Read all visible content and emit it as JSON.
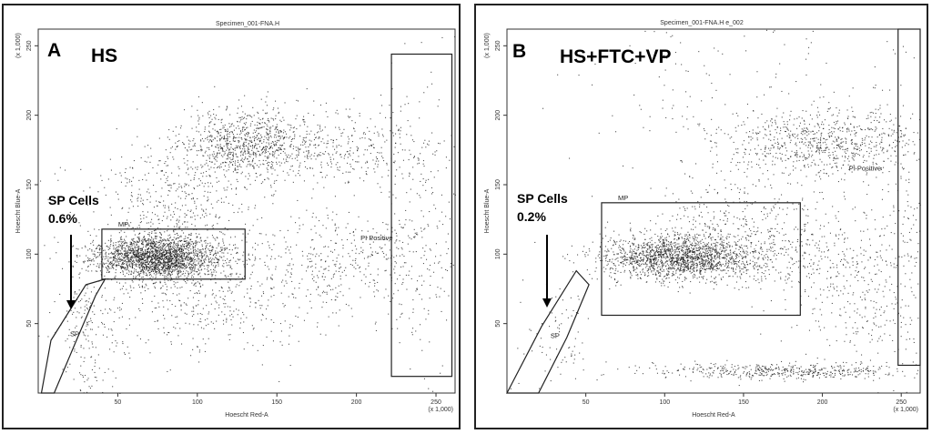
{
  "chart_data": [
    {
      "type": "scatter",
      "panel": "A",
      "header": "Specimen_001-FNA.H",
      "condition": "HS",
      "xlabel": "Hoescht Red-A",
      "ylabel": "Hoescht Blue-A",
      "x_scale_note": "(x 1,000)",
      "y_scale_note": "(x 1,000)",
      "xlim": [
        0,
        262
      ],
      "ylim": [
        0,
        262
      ],
      "xticks": [
        50,
        100,
        150,
        200,
        250
      ],
      "yticks": [
        50,
        100,
        150,
        200,
        250
      ],
      "annotation": {
        "line1": "SP Cells",
        "line2": "0.6%"
      },
      "gates": [
        {
          "name": "SP",
          "label": "SP",
          "shape": "polygon",
          "points": [
            [
              2,
              0
            ],
            [
              8,
              38
            ],
            [
              30,
              78
            ],
            [
              42,
              82
            ],
            [
              36,
              70
            ],
            [
              24,
              38
            ],
            [
              10,
              0
            ]
          ]
        },
        {
          "name": "MP",
          "label": "MP",
          "shape": "rect",
          "x": [
            40,
            130
          ],
          "y": [
            82,
            118
          ]
        },
        {
          "name": "PI Positive",
          "label": "PI Positive",
          "shape": "rect",
          "x": [
            222,
            260
          ],
          "y": [
            12,
            244
          ]
        }
      ],
      "populations": [
        {
          "cx": 75,
          "cy": 98,
          "sx": 20,
          "sy": 8,
          "weight": 0.46
        },
        {
          "cx": 130,
          "cy": 180,
          "sx": 20,
          "sy": 12,
          "weight": 0.16
        },
        {
          "cx": 185,
          "cy": 175,
          "sx": 30,
          "sy": 15,
          "weight": 0.07
        },
        {
          "cx": 85,
          "cy": 140,
          "sx": 25,
          "sy": 20,
          "weight": 0.08
        },
        {
          "cx": 110,
          "cy": 70,
          "sx": 40,
          "sy": 22,
          "weight": 0.09
        },
        {
          "cx": 190,
          "cy": 95,
          "sx": 35,
          "sy": 18,
          "weight": 0.07
        },
        {
          "cx": 30,
          "cy": 45,
          "sx": 10,
          "sy": 22,
          "weight": 0.03
        },
        {
          "cx": 240,
          "cy": 120,
          "sx": 15,
          "sy": 60,
          "weight": 0.04
        }
      ],
      "sp_percent": 0.6
    },
    {
      "type": "scatter",
      "panel": "B",
      "header": "Specimen_001-FNA.H        e_002",
      "condition": "HS+FTC+VP",
      "xlabel": "Hoescht Red-A",
      "ylabel": "Hoescht Blue-A",
      "x_scale_note": "(x 1,000)",
      "y_scale_note": "(x 1,000)",
      "xlim": [
        0,
        262
      ],
      "ylim": [
        0,
        262
      ],
      "xticks": [
        50,
        100,
        150,
        200,
        250
      ],
      "yticks": [
        50,
        100,
        150,
        200,
        250
      ],
      "annotation": {
        "line1": "SP Cells",
        "line2": "0.2%"
      },
      "gates": [
        {
          "name": "SP",
          "label": "SP",
          "shape": "polygon",
          "points": [
            [
              0,
              0
            ],
            [
              22,
              48
            ],
            [
              44,
              88
            ],
            [
              52,
              78
            ],
            [
              38,
              40
            ],
            [
              20,
              0
            ]
          ]
        },
        {
          "name": "MP",
          "label": "MP",
          "shape": "rect",
          "x": [
            60,
            186
          ],
          "y": [
            56,
            137
          ]
        },
        {
          "name": "PI Positive",
          "label": "PI Positive",
          "shape": "rect",
          "x": [
            248,
            262
          ],
          "y": [
            20,
            262
          ]
        }
      ],
      "populations": [
        {
          "cx": 110,
          "cy": 98,
          "sx": 25,
          "sy": 8,
          "weight": 0.42
        },
        {
          "cx": 200,
          "cy": 180,
          "sx": 30,
          "sy": 12,
          "weight": 0.17
        },
        {
          "cx": 150,
          "cy": 120,
          "sx": 30,
          "sy": 18,
          "weight": 0.08
        },
        {
          "cx": 175,
          "cy": 16,
          "sx": 45,
          "sy": 3,
          "weight": 0.11
        },
        {
          "cx": 200,
          "cy": 95,
          "sx": 30,
          "sy": 15,
          "weight": 0.06
        },
        {
          "cx": 230,
          "cy": 60,
          "sx": 25,
          "sy": 30,
          "weight": 0.06
        },
        {
          "cx": 140,
          "cy": 200,
          "sx": 50,
          "sy": 40,
          "weight": 0.05
        },
        {
          "cx": 30,
          "cy": 40,
          "sx": 12,
          "sy": 18,
          "weight": 0.02
        },
        {
          "cx": 245,
          "cy": 140,
          "sx": 10,
          "sy": 60,
          "weight": 0.03
        }
      ],
      "sp_percent": 0.2
    }
  ]
}
